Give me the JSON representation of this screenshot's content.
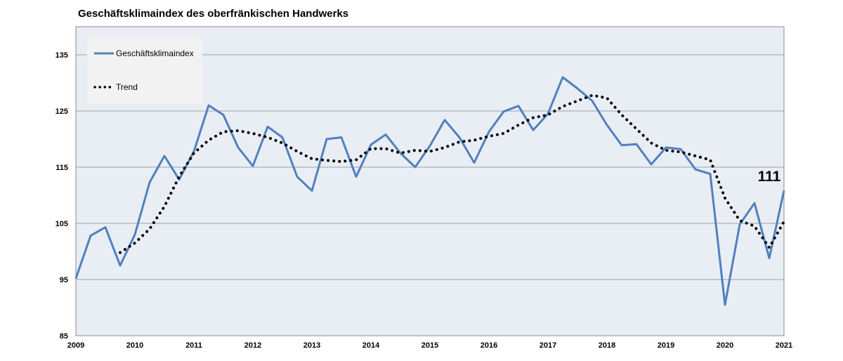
{
  "chart_data": {
    "type": "line",
    "title": "Geschäftsklimaindex des oberfränkischen Handwerks",
    "xlabel": "",
    "ylabel": "",
    "ylim": [
      85,
      140
    ],
    "yticks": [
      85,
      95,
      105,
      115,
      125,
      135
    ],
    "xlim": [
      2009,
      2021
    ],
    "xticks": [
      2009,
      2010,
      2011,
      2012,
      2013,
      2014,
      2015,
      2016,
      2017,
      2018,
      2019,
      2020,
      2021
    ],
    "grid": true,
    "legend_position": "top-left",
    "colors": {
      "plot_background": "#e9edf4",
      "gridline": "#9aa3ad",
      "index_line": "#4f81bd",
      "trend_line": "#000000",
      "legend_background": "#f2f2f2"
    },
    "series": [
      {
        "name": "Geschäftsklimaindex",
        "style": "solid",
        "x": [
          2009.0,
          2009.25,
          2009.5,
          2009.75,
          2010.0,
          2010.25,
          2010.5,
          2010.75,
          2011.0,
          2011.25,
          2011.5,
          2011.75,
          2012.0,
          2012.25,
          2012.5,
          2012.75,
          2013.0,
          2013.25,
          2013.5,
          2013.75,
          2014.0,
          2014.25,
          2014.5,
          2014.75,
          2015.0,
          2015.25,
          2015.5,
          2015.75,
          2016.0,
          2016.25,
          2016.5,
          2016.75,
          2017.0,
          2017.25,
          2017.5,
          2017.75,
          2018.0,
          2018.25,
          2018.5,
          2018.75,
          2019.0,
          2019.25,
          2019.5,
          2019.75,
          2020.0,
          2020.25,
          2020.5,
          2020.75,
          2021.0
        ],
        "values": [
          95.2,
          102.8,
          104.3,
          97.5,
          103.0,
          112.3,
          117.0,
          112.8,
          117.8,
          126.0,
          124.3,
          118.5,
          115.2,
          122.2,
          120.3,
          113.3,
          110.8,
          120.0,
          120.3,
          113.3,
          119.0,
          120.8,
          117.5,
          115.0,
          118.8,
          123.4,
          120.3,
          115.8,
          121.3,
          124.9,
          125.9,
          121.6,
          124.5,
          131.0,
          129.0,
          126.8,
          122.5,
          118.9,
          119.1,
          115.5,
          118.5,
          118.2,
          114.6,
          113.8,
          90.5,
          104.8,
          108.6,
          98.8,
          110.8
        ]
      },
      {
        "name": "Trend",
        "style": "dotted",
        "x": [
          2009.75,
          2010.0,
          2010.25,
          2010.5,
          2010.75,
          2011.0,
          2011.25,
          2011.5,
          2011.75,
          2012.0,
          2012.25,
          2012.5,
          2012.75,
          2013.0,
          2013.25,
          2013.5,
          2013.75,
          2014.0,
          2014.25,
          2014.5,
          2014.75,
          2015.0,
          2015.25,
          2015.5,
          2015.75,
          2016.0,
          2016.25,
          2016.5,
          2016.75,
          2017.0,
          2017.25,
          2017.5,
          2017.75,
          2018.0,
          2018.25,
          2018.5,
          2018.75,
          2019.0,
          2019.25,
          2019.5,
          2019.75,
          2020.0,
          2020.25,
          2020.5,
          2020.75,
          2021.0
        ],
        "values": [
          99.8,
          101.5,
          104.0,
          108.0,
          113.3,
          117.5,
          119.8,
          121.3,
          121.5,
          121.0,
          120.3,
          119.3,
          117.8,
          116.5,
          116.2,
          116.0,
          116.3,
          118.3,
          118.3,
          117.5,
          118.0,
          117.8,
          118.5,
          119.5,
          119.8,
          120.5,
          121.0,
          122.5,
          123.8,
          124.3,
          125.8,
          126.8,
          127.8,
          127.3,
          124.3,
          121.8,
          119.3,
          118.0,
          117.7,
          117.0,
          116.3,
          109.5,
          105.5,
          104.5,
          100.7,
          105.3
        ]
      }
    ],
    "annotations": [
      {
        "text": "111",
        "x": 2020.75,
        "y": 112.5
      }
    ]
  }
}
